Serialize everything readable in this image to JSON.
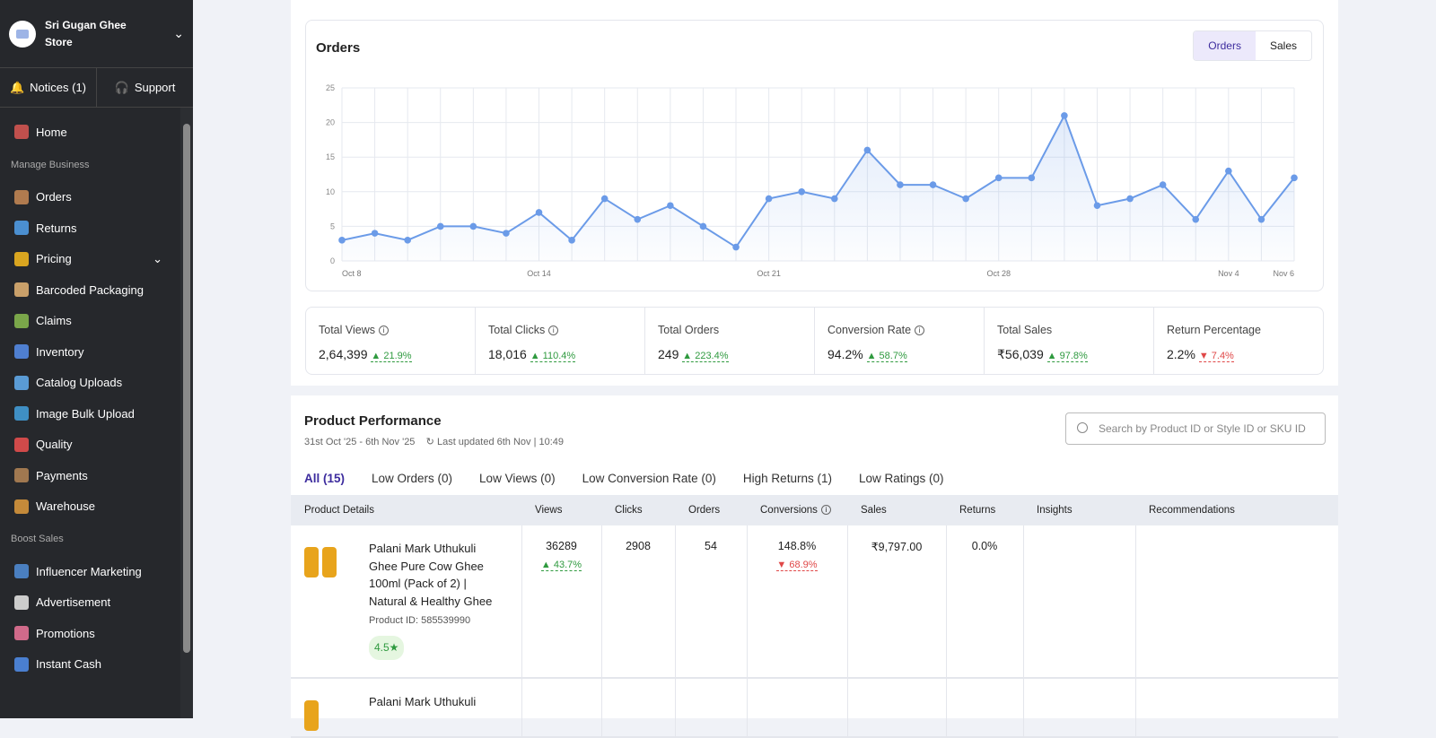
{
  "sidebar": {
    "store_name": "Sri Gugan Ghee Store",
    "notices": "Notices (1)",
    "support": "Support",
    "items": [
      {
        "label": "Home",
        "color": "#c0504d"
      },
      {
        "section": "Manage Business"
      },
      {
        "label": "Orders",
        "color": "#b07b4f"
      },
      {
        "label": "Returns",
        "color": "#4b8fd0"
      },
      {
        "label": "Pricing",
        "color": "#d9a520",
        "expand": true
      },
      {
        "label": "Barcoded Packaging",
        "color": "#c9a06a"
      },
      {
        "label": "Claims",
        "color": "#7aa64a"
      },
      {
        "label": "Inventory",
        "color": "#4f7fd0"
      },
      {
        "label": "Catalog Uploads",
        "color": "#5a9bd5"
      },
      {
        "label": "Image Bulk Upload",
        "color": "#3f8fc4"
      },
      {
        "label": "Quality",
        "color": "#d04a4a"
      },
      {
        "label": "Payments",
        "color": "#a07850"
      },
      {
        "label": "Warehouse",
        "color": "#c48a3a"
      },
      {
        "section": "Boost Sales"
      },
      {
        "label": "Influencer Marketing",
        "color": "#4a7fc0"
      },
      {
        "label": "Advertisement",
        "color": "#cccccc"
      },
      {
        "label": "Promotions",
        "color": "#d06a8a"
      },
      {
        "label": "Instant Cash",
        "color": "#4a7fd0"
      }
    ]
  },
  "orders_card": {
    "title": "Orders",
    "toggle": [
      "Orders",
      "Sales"
    ],
    "active": "Orders"
  },
  "chart_data": {
    "type": "line",
    "title": "Orders",
    "ylim": [
      0,
      25
    ],
    "yticks": [
      0,
      5,
      10,
      15,
      20,
      25
    ],
    "grid": true,
    "color": "#6b9be8",
    "x": [
      "Oct 8",
      "Oct 9",
      "Oct 10",
      "Oct 11",
      "Oct 12",
      "Oct 13",
      "Oct 14",
      "Oct 15",
      "Oct 16",
      "Oct 17",
      "Oct 18",
      "Oct 19",
      "Oct 20",
      "Oct 21",
      "Oct 22",
      "Oct 23",
      "Oct 24",
      "Oct 25",
      "Oct 26",
      "Oct 27",
      "Oct 28",
      "Oct 29",
      "Oct 30",
      "Oct 31",
      "Nov 1",
      "Nov 2",
      "Nov 3",
      "Nov 4",
      "Nov 5",
      "Nov 6"
    ],
    "xtick_labels": [
      "Oct 8",
      "Oct 14",
      "Oct 21",
      "Oct 28",
      "Nov 4",
      "Nov 6"
    ],
    "values": [
      3,
      4,
      3,
      5,
      5,
      4,
      7,
      3,
      9,
      6,
      8,
      5,
      2,
      9,
      10,
      9,
      16,
      11,
      11,
      9,
      12,
      12,
      21,
      8,
      9,
      11,
      6,
      13,
      6,
      12
    ]
  },
  "stats": [
    {
      "label": "Total Views",
      "info": true,
      "value": "2,64,399",
      "change": "21.9%",
      "dir": "up"
    },
    {
      "label": "Total Clicks",
      "info": true,
      "value": "18,016",
      "change": "110.4%",
      "dir": "up"
    },
    {
      "label": "Total Orders",
      "value": "249",
      "change": "223.4%",
      "dir": "up"
    },
    {
      "label": "Conversion Rate",
      "info": true,
      "value": "94.2%",
      "change": "58.7%",
      "dir": "up"
    },
    {
      "label": "Total Sales",
      "value": "₹56,039",
      "change": "97.8%",
      "dir": "up"
    },
    {
      "label": "Return Percentage",
      "value": "2.2%",
      "change": "7.4%",
      "dir": "down"
    }
  ],
  "perf": {
    "title": "Product Performance",
    "range": "31st Oct '25 - 6th Nov '25",
    "updated": "Last updated 6th Nov | 10:49",
    "search_placeholder": "Search by Product ID or Style ID or SKU ID",
    "tabs": [
      "All (15)",
      "Low Orders (0)",
      "Low Views (0)",
      "Low Conversion Rate (0)",
      "High Returns (1)",
      "Low Ratings (0)"
    ],
    "columns": [
      "Product Details",
      "Views",
      "Clicks",
      "Orders",
      "Conversions",
      "Sales",
      "Returns",
      "Insights",
      "Recommendations"
    ],
    "rows": [
      {
        "name": "Palani Mark Uthukuli Ghee Pure Cow Ghee 100ml (Pack of 2) | Natural & Healthy Ghee",
        "pid": "Product ID: 585539990",
        "rating": "4.5★",
        "views": "36289",
        "views_change": "43.7%",
        "clicks": "2908",
        "orders": "54",
        "conv": "148.8%",
        "conv_change": "68.9%",
        "sales": "₹9,797.00",
        "returns": "0.0%"
      },
      {
        "name": "Palani Mark Uthukuli"
      }
    ]
  }
}
